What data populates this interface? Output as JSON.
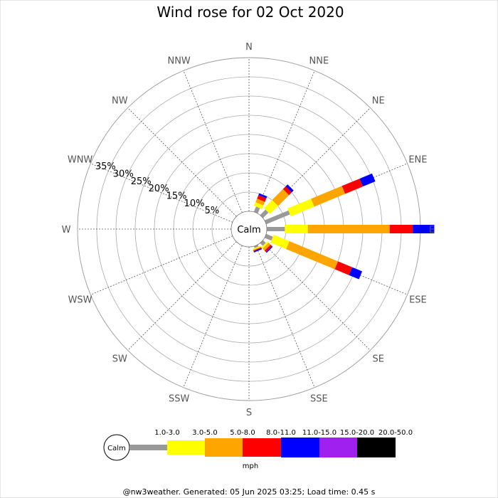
{
  "chart_data": {
    "type": "wind-rose",
    "title": "Wind rose for 02 Oct 2020",
    "directions": [
      "N",
      "NNE",
      "NE",
      "ENE",
      "E",
      "ESE",
      "SE",
      "SSE",
      "S",
      "SSW",
      "SW",
      "WSW",
      "W",
      "WNW",
      "NW",
      "NNW"
    ],
    "radial_ticks": [
      "5%",
      "10%",
      "15%",
      "20%",
      "25%",
      "30%",
      "35%"
    ],
    "radial_values": [
      5,
      10,
      15,
      20,
      25,
      30,
      35
    ],
    "radial_max": 40,
    "calm_label": "Calm",
    "units": "mph",
    "speed_bins": [
      "Calm",
      "1.0-3.0",
      "3.0-5.0",
      "5.0-8.0",
      "8.0-11.0",
      "11.0-15.0",
      "15.0-20.0",
      "20.0-50.0"
    ],
    "bin_colors": [
      "#ffffff",
      "#999999",
      "#ffff00",
      "#ffa500",
      "#ff0000",
      "#0000ff",
      "#a020f0",
      "#000000"
    ],
    "series": [
      {
        "direction": "NNE",
        "cumulative": [
          0,
          1.5,
          2.5,
          3.5,
          4.5,
          5.0,
          5.0,
          5.0
        ]
      },
      {
        "direction": "NE",
        "cumulative": [
          0,
          2.0,
          5.0,
          9.0,
          10.0,
          10.7,
          10.7,
          10.7
        ]
      },
      {
        "direction": "ENE",
        "cumulative": [
          0,
          6.7,
          13.3,
          22.0,
          27.0,
          30.5,
          30.5,
          30.5
        ]
      },
      {
        "direction": "E",
        "cumulative": [
          0,
          4.7,
          10.7,
          32.0,
          38.0,
          43.6,
          43.6,
          43.6
        ]
      },
      {
        "direction": "ESE",
        "cumulative": [
          0,
          1.9,
          6.3,
          20.0,
          24.0,
          26.8,
          26.8,
          26.8
        ]
      },
      {
        "direction": "SE",
        "cumulative": [
          0,
          1.0,
          1.5,
          2.2,
          2.7,
          3.0,
          3.0,
          3.0
        ]
      },
      {
        "direction": "SSE",
        "cumulative": [
          0,
          0.5,
          0.8,
          1.0,
          1.2,
          1.5,
          1.5,
          1.5
        ]
      }
    ]
  },
  "footer": "@nw3weather. Generated: 05 Jun 2025 03:25; Load time: 0.45 s"
}
